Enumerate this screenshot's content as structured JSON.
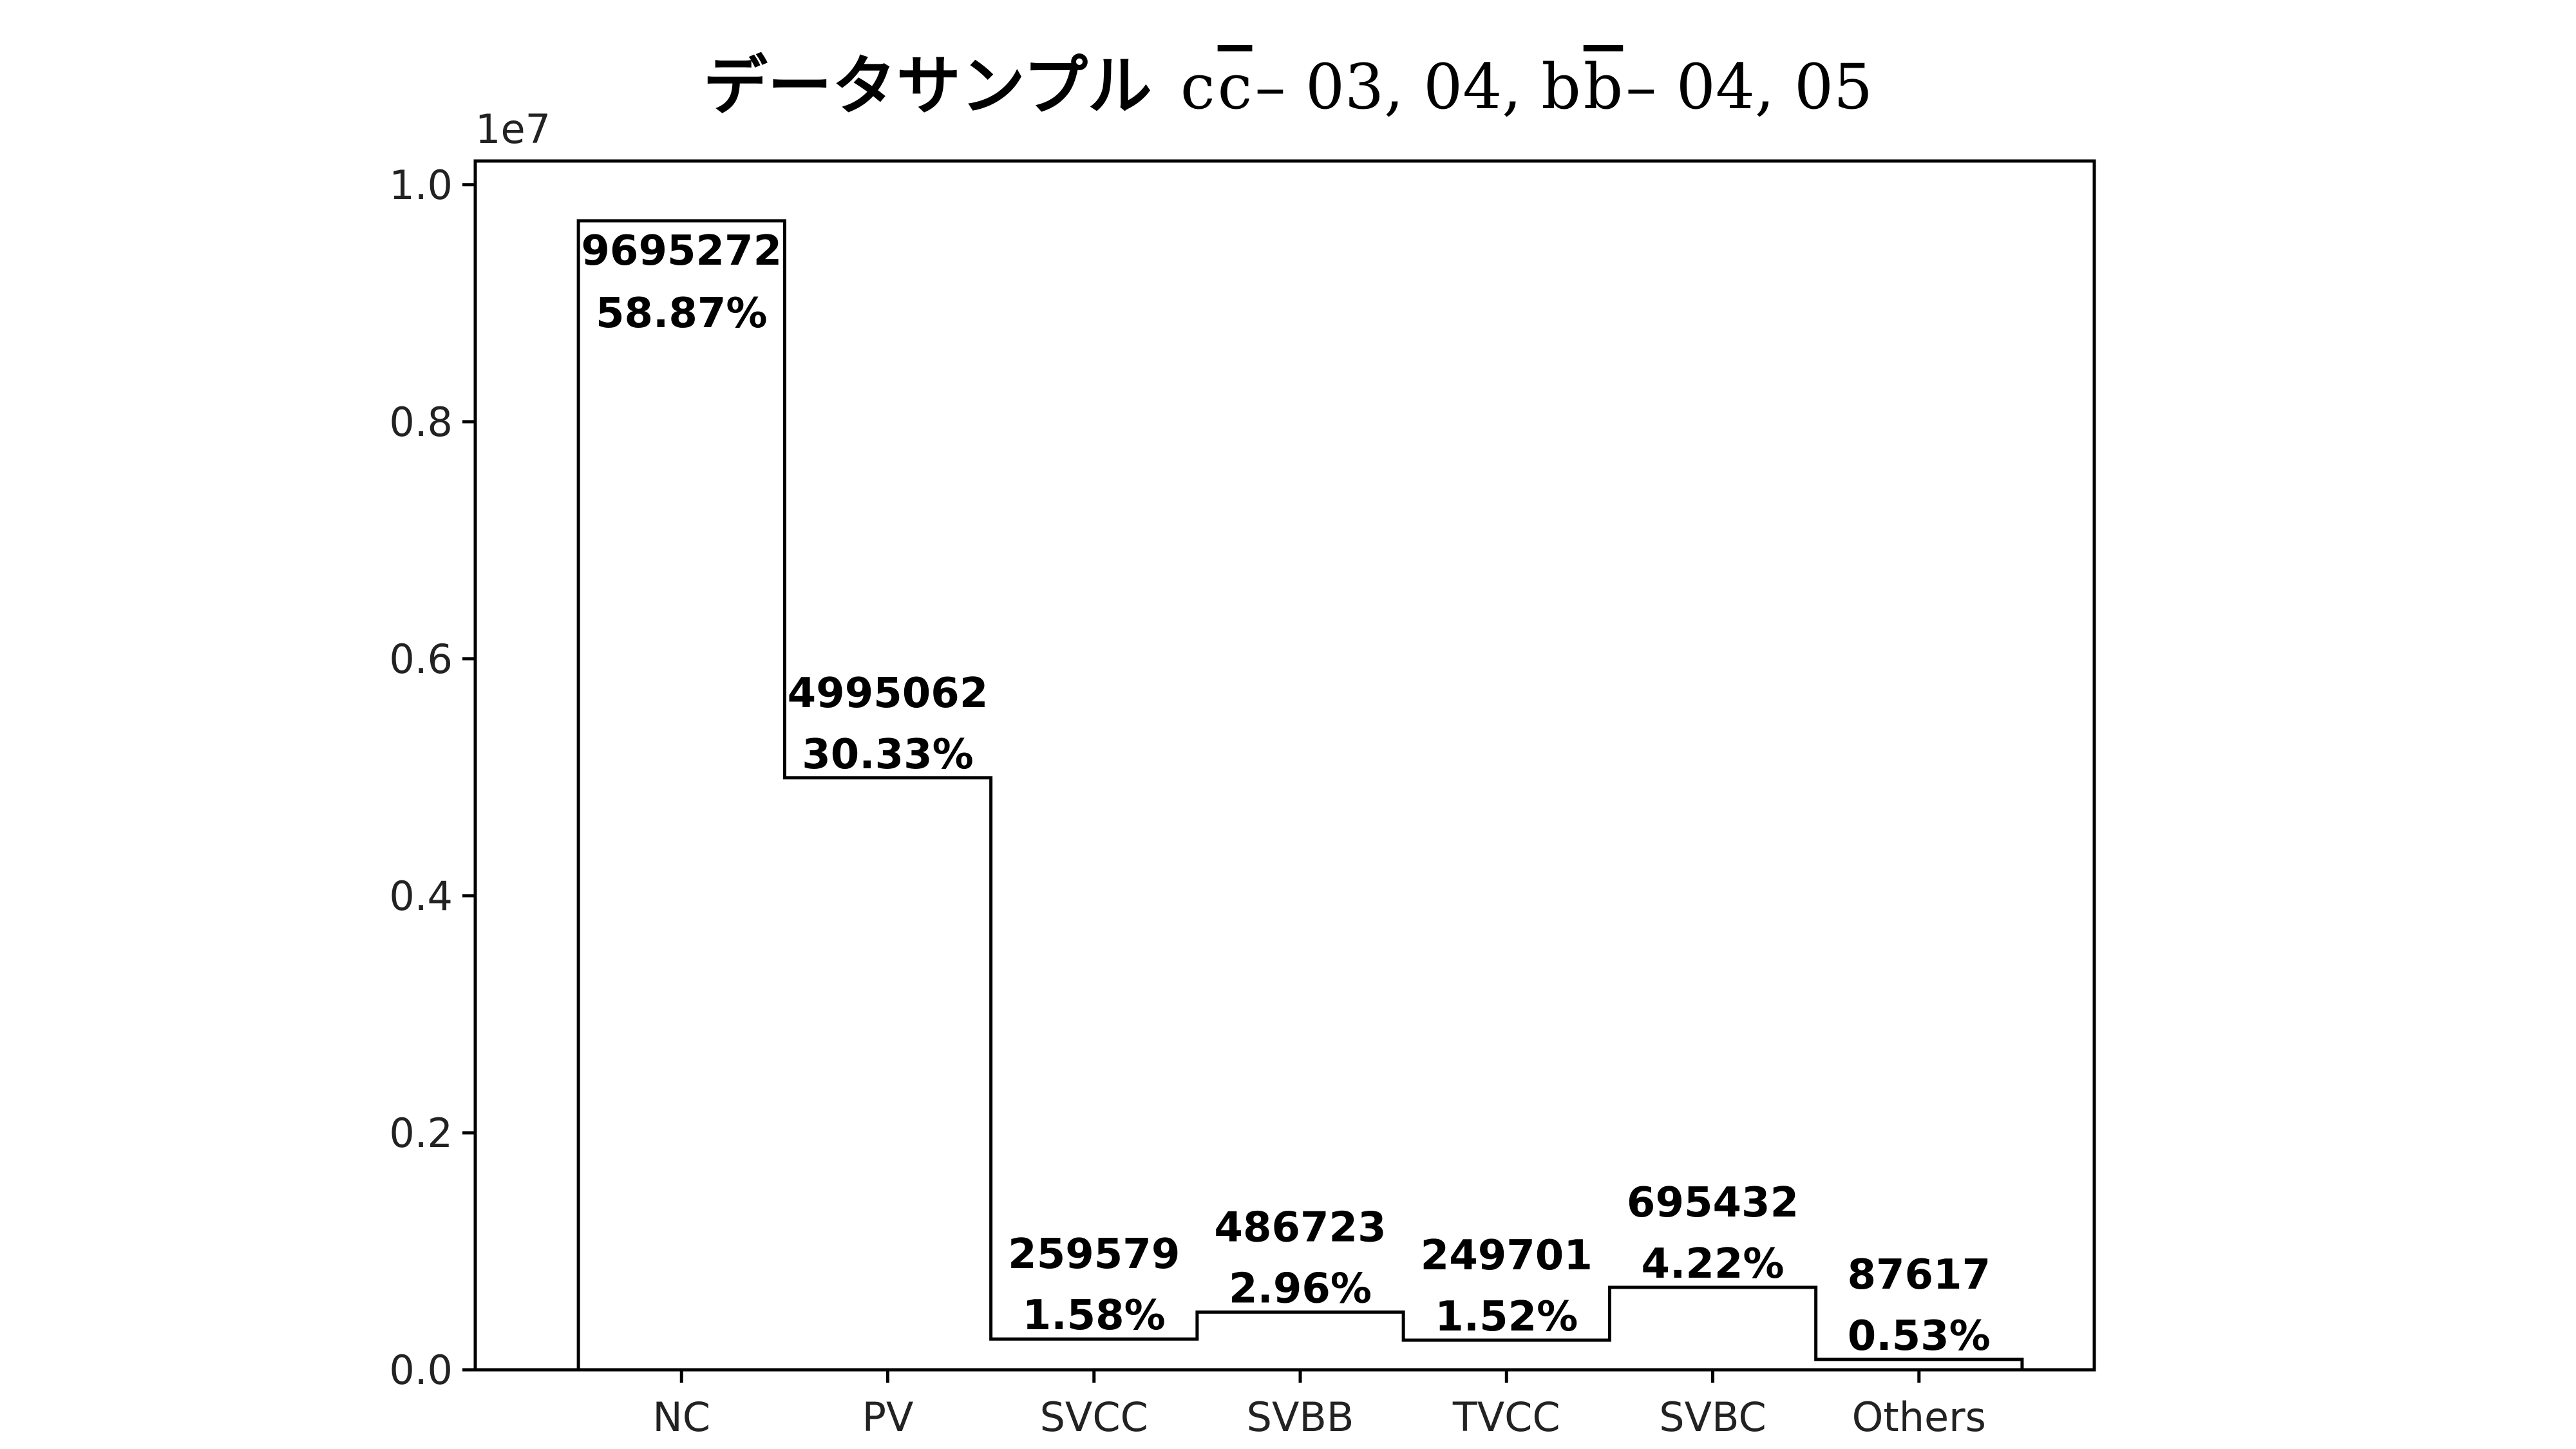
{
  "chart_data": {
    "type": "bar",
    "style": "step",
    "title": "データサンプル cc̄ – 03, 04, bb̄ – 04, 05",
    "title_parts": {
      "jp": "データサンプル",
      "math_pre": "c",
      "math_bar1": "c",
      "math_mid": " – 03, 04, b",
      "math_bar2": "b",
      "math_post": " – 04, 05"
    },
    "y_offset_label": "1e7",
    "categories": [
      "NC",
      "PV",
      "SVCC",
      "SVBB",
      "TVCC",
      "SVBC",
      "Others"
    ],
    "values": [
      9695272,
      4995062,
      259579,
      486723,
      249701,
      695432,
      87617
    ],
    "value_labels": [
      "9695272",
      "4995062",
      "259579",
      "486723",
      "249701",
      "695432",
      "87617"
    ],
    "percent_labels": [
      "58.87%",
      "30.33%",
      "1.58%",
      "2.96%",
      "1.52%",
      "4.22%",
      "0.53%"
    ],
    "y_ticks": [
      0,
      2000000,
      4000000,
      6000000,
      8000000,
      10000000
    ],
    "y_tick_labels": [
      "0.0",
      "0.2",
      "0.4",
      "0.6",
      "0.8",
      "1.0"
    ],
    "ylim": [
      0,
      10200000
    ],
    "xlabel": "",
    "ylabel": "",
    "grid": false,
    "legend": "none",
    "colors": {
      "line": "#000000",
      "background": "#ffffff"
    }
  }
}
